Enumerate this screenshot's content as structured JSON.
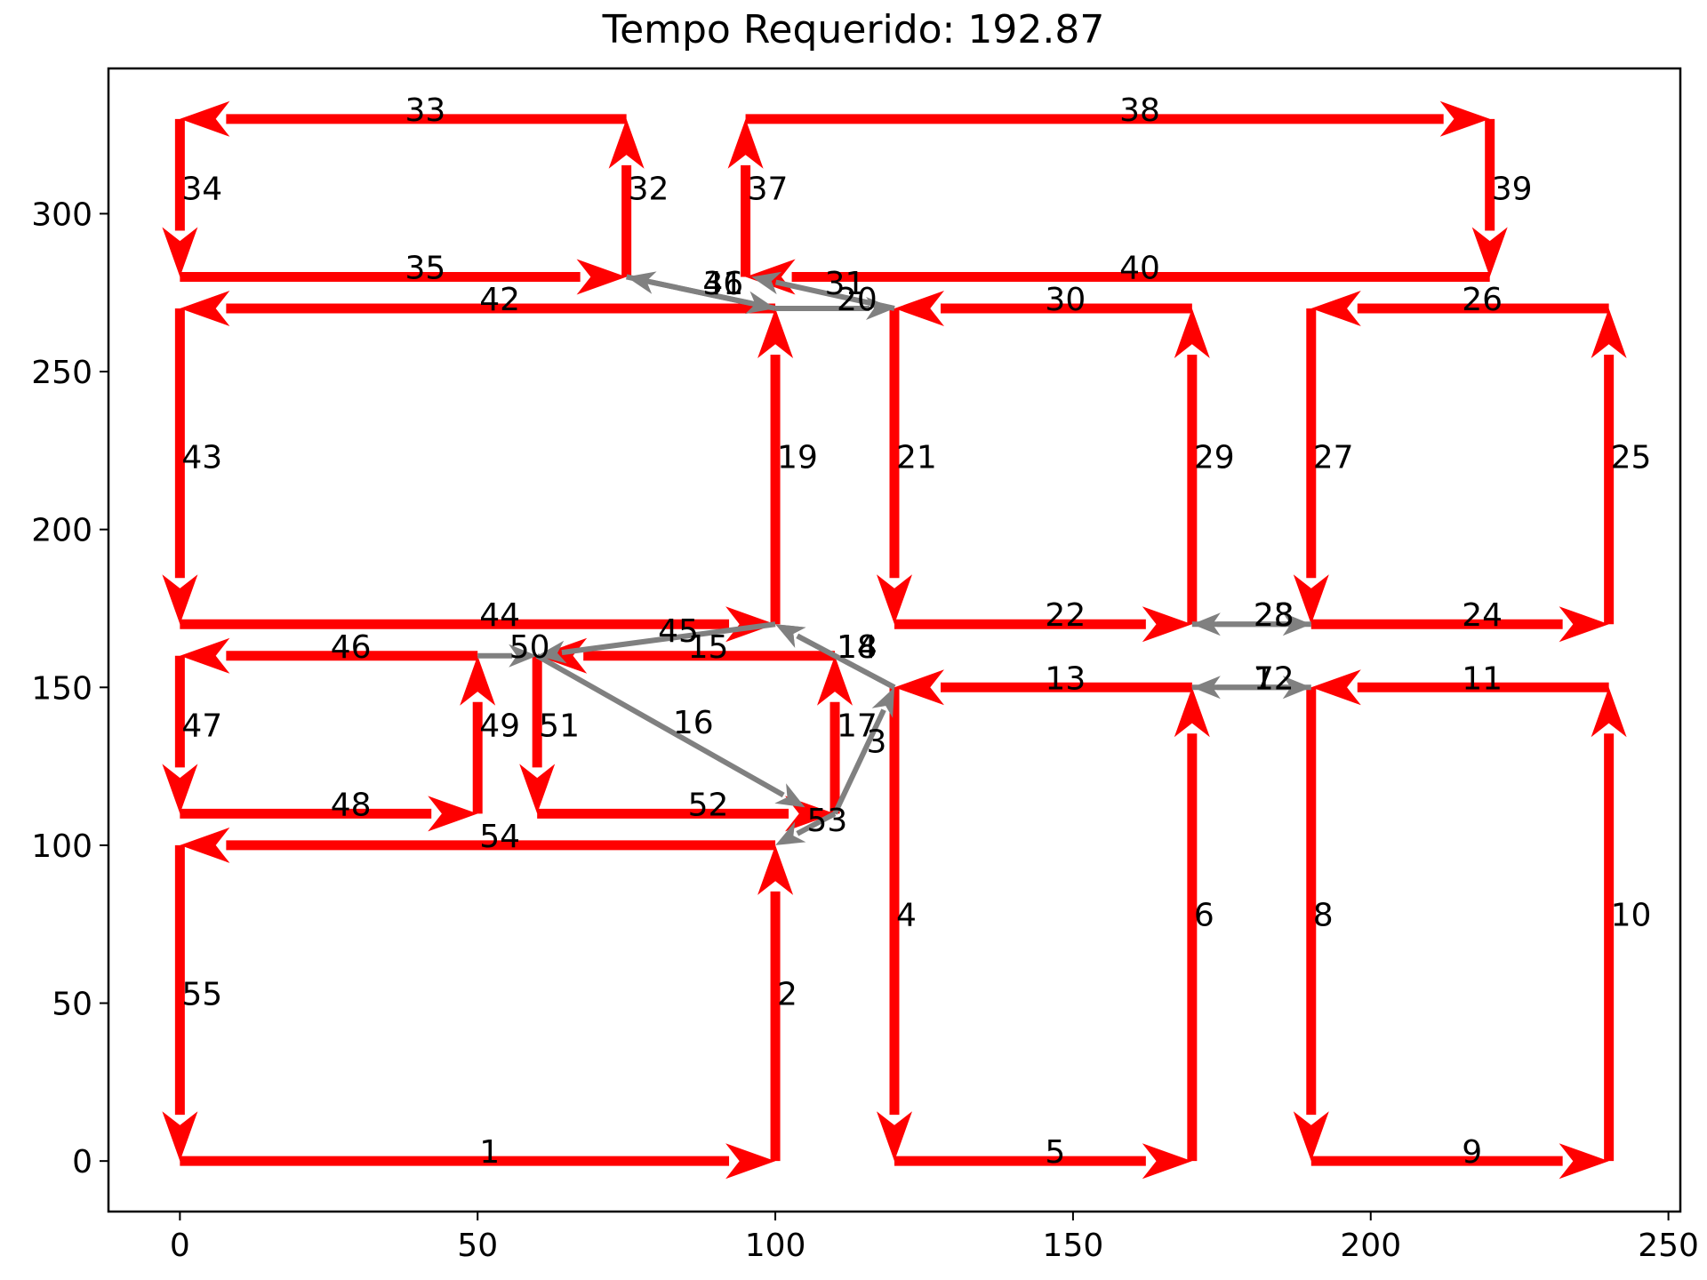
{
  "chart_data": {
    "type": "directed-graph",
    "title": "Tempo Requerido: 192.87",
    "xlim": [
      -12,
      252
    ],
    "ylim": [
      -16,
      346
    ],
    "xticks": [
      0,
      50,
      100,
      150,
      200,
      250
    ],
    "yticks": [
      0,
      50,
      100,
      150,
      200,
      250,
      300
    ],
    "xlabel": "",
    "ylabel": "",
    "grid": false,
    "colors": {
      "required": "#ff0000",
      "deadhead": "#808080",
      "axis": "#000000"
    },
    "edges": [
      {
        "id": "1",
        "from": [
          0,
          0
        ],
        "to": [
          100,
          0
        ],
        "kind": "required"
      },
      {
        "id": "2",
        "from": [
          100,
          0
        ],
        "to": [
          100,
          100
        ],
        "kind": "required"
      },
      {
        "id": "3",
        "from": [
          110,
          110
        ],
        "to": [
          120,
          150
        ],
        "kind": "deadhead"
      },
      {
        "id": "4",
        "from": [
          120,
          150
        ],
        "to": [
          120,
          0
        ],
        "kind": "required"
      },
      {
        "id": "5",
        "from": [
          120,
          0
        ],
        "to": [
          170,
          0
        ],
        "kind": "required"
      },
      {
        "id": "6",
        "from": [
          170,
          0
        ],
        "to": [
          170,
          150
        ],
        "kind": "required"
      },
      {
        "id": "7",
        "from": [
          190,
          150
        ],
        "to": [
          170,
          150
        ],
        "kind": "deadhead"
      },
      {
        "id": "8",
        "from": [
          190,
          150
        ],
        "to": [
          190,
          0
        ],
        "kind": "required"
      },
      {
        "id": "9",
        "from": [
          190,
          0
        ],
        "to": [
          240,
          0
        ],
        "kind": "required"
      },
      {
        "id": "10",
        "from": [
          240,
          0
        ],
        "to": [
          240,
          150
        ],
        "kind": "required"
      },
      {
        "id": "11",
        "from": [
          240,
          150
        ],
        "to": [
          190,
          150
        ],
        "kind": "required"
      },
      {
        "id": "12",
        "from": [
          170,
          150
        ],
        "to": [
          190,
          150
        ],
        "kind": "deadhead"
      },
      {
        "id": "13",
        "from": [
          170,
          150
        ],
        "to": [
          120,
          150
        ],
        "kind": "required"
      },
      {
        "id": "14",
        "from": [
          120,
          150
        ],
        "to": [
          100,
          170
        ],
        "kind": "deadhead"
      },
      {
        "id": "15",
        "from": [
          110,
          160
        ],
        "to": [
          60,
          160
        ],
        "kind": "required"
      },
      {
        "id": "16",
        "from": [
          60,
          160
        ],
        "to": [
          105,
          112
        ],
        "kind": "deadhead"
      },
      {
        "id": "17",
        "from": [
          110,
          110
        ],
        "to": [
          110,
          160
        ],
        "kind": "required"
      },
      {
        "id": "18",
        "from": [
          120,
          150
        ],
        "to": [
          100,
          170
        ],
        "kind": "deadhead"
      },
      {
        "id": "19",
        "from": [
          100,
          170
        ],
        "to": [
          100,
          270
        ],
        "kind": "required"
      },
      {
        "id": "20",
        "from": [
          100,
          270
        ],
        "to": [
          120,
          270
        ],
        "kind": "deadhead"
      },
      {
        "id": "21",
        "from": [
          120,
          270
        ],
        "to": [
          120,
          170
        ],
        "kind": "required"
      },
      {
        "id": "22",
        "from": [
          120,
          170
        ],
        "to": [
          170,
          170
        ],
        "kind": "required"
      },
      {
        "id": "23",
        "from": [
          190,
          170
        ],
        "to": [
          170,
          170
        ],
        "kind": "deadhead"
      },
      {
        "id": "24",
        "from": [
          190,
          170
        ],
        "to": [
          240,
          170
        ],
        "kind": "required"
      },
      {
        "id": "25",
        "from": [
          240,
          170
        ],
        "to": [
          240,
          270
        ],
        "kind": "required"
      },
      {
        "id": "26",
        "from": [
          240,
          270
        ],
        "to": [
          190,
          270
        ],
        "kind": "required"
      },
      {
        "id": "27",
        "from": [
          190,
          270
        ],
        "to": [
          190,
          170
        ],
        "kind": "required"
      },
      {
        "id": "28",
        "from": [
          170,
          170
        ],
        "to": [
          190,
          170
        ],
        "kind": "deadhead"
      },
      {
        "id": "29",
        "from": [
          170,
          170
        ],
        "to": [
          170,
          270
        ],
        "kind": "required"
      },
      {
        "id": "30",
        "from": [
          170,
          270
        ],
        "to": [
          120,
          270
        ],
        "kind": "required"
      },
      {
        "id": "31",
        "from": [
          120,
          270
        ],
        "to": [
          96,
          280
        ],
        "kind": "deadhead"
      },
      {
        "id": "32",
        "from": [
          75,
          280
        ],
        "to": [
          75,
          330
        ],
        "kind": "required"
      },
      {
        "id": "33",
        "from": [
          75,
          330
        ],
        "to": [
          0,
          330
        ],
        "kind": "required"
      },
      {
        "id": "34",
        "from": [
          0,
          330
        ],
        "to": [
          0,
          280
        ],
        "kind": "required"
      },
      {
        "id": "35",
        "from": [
          0,
          280
        ],
        "to": [
          75,
          280
        ],
        "kind": "required"
      },
      {
        "id": "36",
        "from": [
          100,
          270
        ],
        "to": [
          75,
          280
        ],
        "kind": "deadhead"
      },
      {
        "id": "37",
        "from": [
          95,
          280
        ],
        "to": [
          95,
          330
        ],
        "kind": "required"
      },
      {
        "id": "38",
        "from": [
          95,
          330
        ],
        "to": [
          220,
          330
        ],
        "kind": "required"
      },
      {
        "id": "39",
        "from": [
          220,
          330
        ],
        "to": [
          220,
          280
        ],
        "kind": "required"
      },
      {
        "id": "40",
        "from": [
          220,
          280
        ],
        "to": [
          95,
          280
        ],
        "kind": "required"
      },
      {
        "id": "41",
        "from": [
          75,
          280
        ],
        "to": [
          100,
          270
        ],
        "kind": "deadhead"
      },
      {
        "id": "42",
        "from": [
          100,
          270
        ],
        "to": [
          0,
          270
        ],
        "kind": "required"
      },
      {
        "id": "43",
        "from": [
          0,
          270
        ],
        "to": [
          0,
          170
        ],
        "kind": "required"
      },
      {
        "id": "44",
        "from": [
          0,
          170
        ],
        "to": [
          100,
          170
        ],
        "kind": "required"
      },
      {
        "id": "45",
        "from": [
          100,
          170
        ],
        "to": [
          60,
          160
        ],
        "kind": "deadhead"
      },
      {
        "id": "46",
        "from": [
          50,
          160
        ],
        "to": [
          0,
          160
        ],
        "kind": "required"
      },
      {
        "id": "47",
        "from": [
          0,
          160
        ],
        "to": [
          0,
          110
        ],
        "kind": "required"
      },
      {
        "id": "48",
        "from": [
          0,
          110
        ],
        "to": [
          50,
          110
        ],
        "kind": "required"
      },
      {
        "id": "49",
        "from": [
          50,
          110
        ],
        "to": [
          50,
          160
        ],
        "kind": "required"
      },
      {
        "id": "50",
        "from": [
          50,
          160
        ],
        "to": [
          60,
          160
        ],
        "kind": "deadhead"
      },
      {
        "id": "51",
        "from": [
          60,
          160
        ],
        "to": [
          60,
          110
        ],
        "kind": "required"
      },
      {
        "id": "52",
        "from": [
          60,
          110
        ],
        "to": [
          110,
          110
        ],
        "kind": "required"
      },
      {
        "id": "53",
        "from": [
          110,
          110
        ],
        "to": [
          100,
          100
        ],
        "kind": "deadhead"
      },
      {
        "id": "54",
        "from": [
          100,
          100
        ],
        "to": [
          0,
          100
        ],
        "kind": "required"
      },
      {
        "id": "55",
        "from": [
          0,
          100
        ],
        "to": [
          0,
          0
        ],
        "kind": "required"
      }
    ]
  }
}
